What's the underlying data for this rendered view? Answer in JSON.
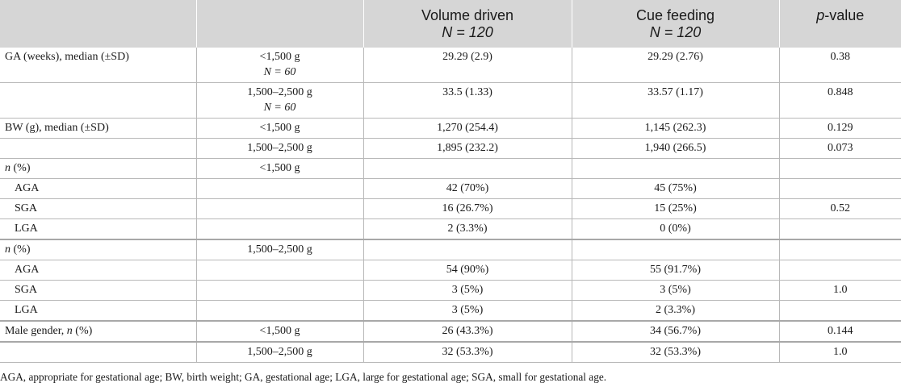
{
  "header": {
    "col3_line1": "Volume driven",
    "col3_line2": "N = 120",
    "col4_line1": "Cue feeding",
    "col4_line2": "N = 120",
    "col5_p": "p",
    "col5_rest": "-value"
  },
  "rows": [
    {
      "c1": "GA (weeks), median (±SD)",
      "c2": "<1,500 g",
      "c2b": "N = 60",
      "c3": "29.29 (2.9)",
      "c4": "29.29 (2.76)",
      "c5": "0.38"
    },
    {
      "c1": "",
      "c2": "1,500–2,500 g",
      "c2b": "N = 60",
      "c3": "33.5 (1.33)",
      "c4": "33.57 (1.17)",
      "c5": "0.848"
    },
    {
      "c1": "BW (g), median (±SD)",
      "c2": "<1,500 g",
      "c3": "1,270 (254.4)",
      "c4": "1,145 (262.3)",
      "c5": "0.129"
    },
    {
      "c1": "",
      "c2": "1,500–2,500 g",
      "c3": "1,895 (232.2)",
      "c4": "1,940 (266.5)",
      "c5": "0.073"
    },
    {
      "c1_it": "n",
      "c1": " (%)",
      "c2": "<1,500 g",
      "c3": "",
      "c4": "",
      "c5": ""
    },
    {
      "c1": "AGA",
      "c2": "",
      "c3": "42 (70%)",
      "c4": "45 (75%)",
      "c5": ""
    },
    {
      "c1": "SGA",
      "c2": "",
      "c3": "16 (26.7%)",
      "c4": "15 (25%)",
      "c5": "0.52"
    },
    {
      "c1": "LGA",
      "c2": "",
      "c3": "2 (3.3%)",
      "c4": "0 (0%)",
      "c5": ""
    },
    {
      "c1_it": "n",
      "c1": " (%)",
      "c2": "1,500–2,500 g",
      "c3": "",
      "c4": "",
      "c5": ""
    },
    {
      "c1": "AGA",
      "c2": "",
      "c3": "54 (90%)",
      "c4": "55 (91.7%)",
      "c5": ""
    },
    {
      "c1": "SGA",
      "c2": "",
      "c3": "3 (5%)",
      "c4": "3 (5%)",
      "c5": "1.0"
    },
    {
      "c1": "LGA",
      "c2": "",
      "c3": "3 (5%)",
      "c4": "2 (3.3%)",
      "c5": ""
    },
    {
      "c1": "Male gender, ",
      "c1_it2": "n",
      "c1_end": " (%)",
      "c2": "<1,500 g",
      "c3": "26 (43.3%)",
      "c4": "34 (56.7%)",
      "c5": "0.144"
    },
    {
      "c1": "",
      "c2": "1,500–2,500 g",
      "c3": "32 (53.3%)",
      "c4": "32 (53.3%)",
      "c5": "1.0"
    }
  ],
  "footnote": "AGA, appropriate for gestational age; BW, birth weight; GA, gestational age; LGA, large for gestational age; SGA, small for gestational age."
}
